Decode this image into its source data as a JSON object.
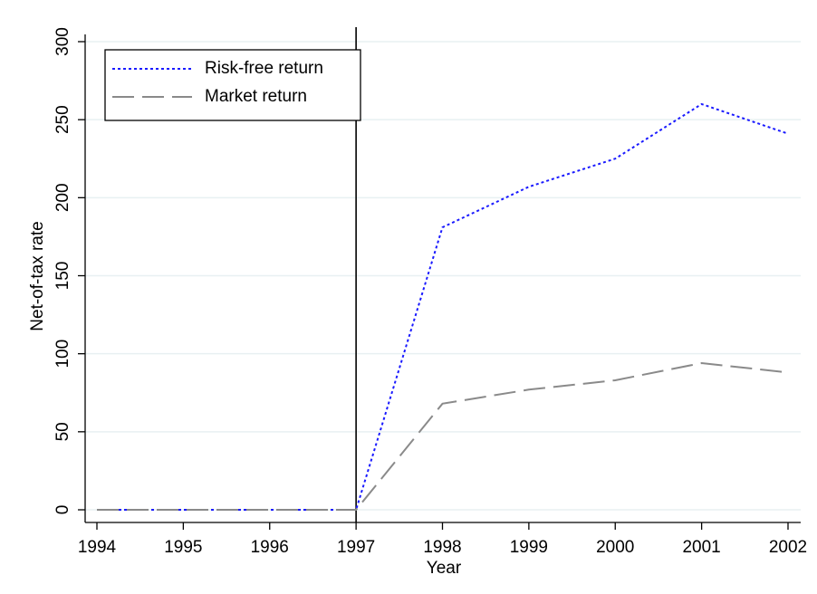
{
  "chart_data": {
    "type": "line",
    "x": [
      1994,
      1995,
      1996,
      1997,
      1998,
      1999,
      2000,
      2001,
      2002
    ],
    "series": [
      {
        "name": "Risk-free return",
        "color": "#1a1aff",
        "dash": "dotted",
        "values": [
          0,
          0,
          0,
          0,
          181,
          207,
          225,
          260,
          241
        ]
      },
      {
        "name": "Market return",
        "color": "#8a8a8a",
        "dash": "longdash",
        "values": [
          0,
          0,
          0,
          0,
          68,
          77,
          83,
          94,
          88
        ]
      }
    ],
    "xlim": [
      1994,
      2002
    ],
    "xticks": [
      1994,
      1995,
      1996,
      1997,
      1998,
      1999,
      2000,
      2001,
      2002
    ],
    "ylim": [
      0,
      300
    ],
    "yticks": [
      0,
      50,
      100,
      150,
      200,
      250,
      300
    ],
    "xlabel": "Year",
    "ylabel": "Net-of-tax rate",
    "xline": 1997,
    "grid": true,
    "legend": "top-left"
  }
}
